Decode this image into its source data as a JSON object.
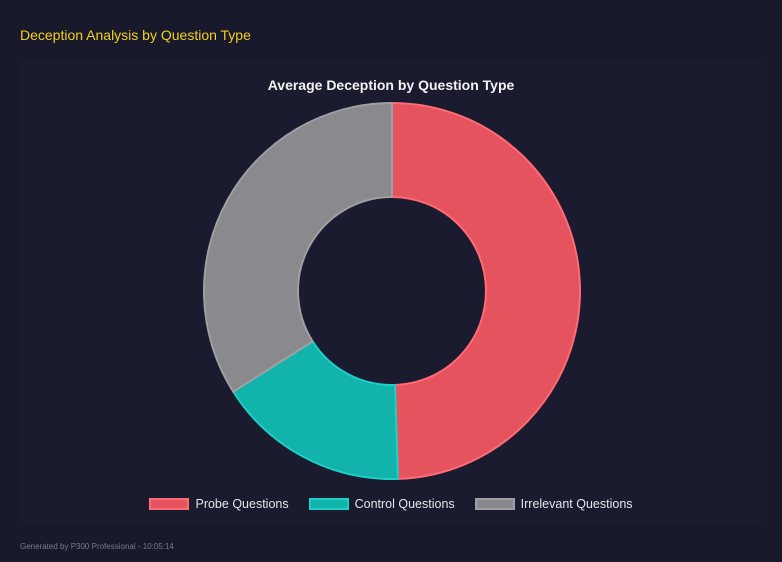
{
  "header": {
    "title": "Deception Analysis by Question Type"
  },
  "footer": {
    "text": "Generated by P300 Professional - 10:05:14"
  },
  "chart_data": {
    "type": "doughnut",
    "title": "Average Deception by Question Type",
    "categories": [
      "Probe Questions",
      "Control Questions",
      "Irrelevant Questions"
    ],
    "values": [
      49.5,
      16.5,
      34.0
    ],
    "colors": [
      "#e5535f",
      "#11b3aa",
      "#8a8a8e"
    ],
    "border_colors": [
      "#ff6b75",
      "#1cd0c6",
      "#a0a0a3"
    ],
    "legend": "bottom"
  }
}
